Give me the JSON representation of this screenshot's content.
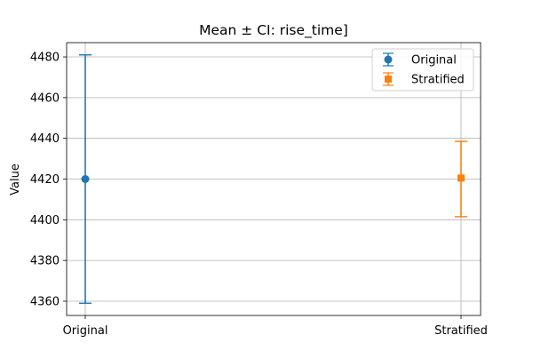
{
  "chart_data": {
    "type": "errorbar",
    "title": "Mean ± CI: rise_time]",
    "xlabel": "",
    "ylabel": "Value",
    "categories": [
      "Original",
      "Stratified"
    ],
    "ylim": [
      4353,
      4487
    ],
    "yticks": [
      4360,
      4380,
      4400,
      4420,
      4440,
      4460,
      4480
    ],
    "grid": true,
    "legend_position": "top-right",
    "series": [
      {
        "name": "Original",
        "category": "Original",
        "mean": 4420,
        "ci_low": 4359,
        "ci_high": 4481,
        "marker": "circle",
        "color": "#1f77b4"
      },
      {
        "name": "Stratified",
        "category": "Stratified",
        "mean": 4420.5,
        "ci_low": 4401.5,
        "ci_high": 4438.5,
        "marker": "square",
        "color": "#ff7f0e"
      }
    ]
  }
}
